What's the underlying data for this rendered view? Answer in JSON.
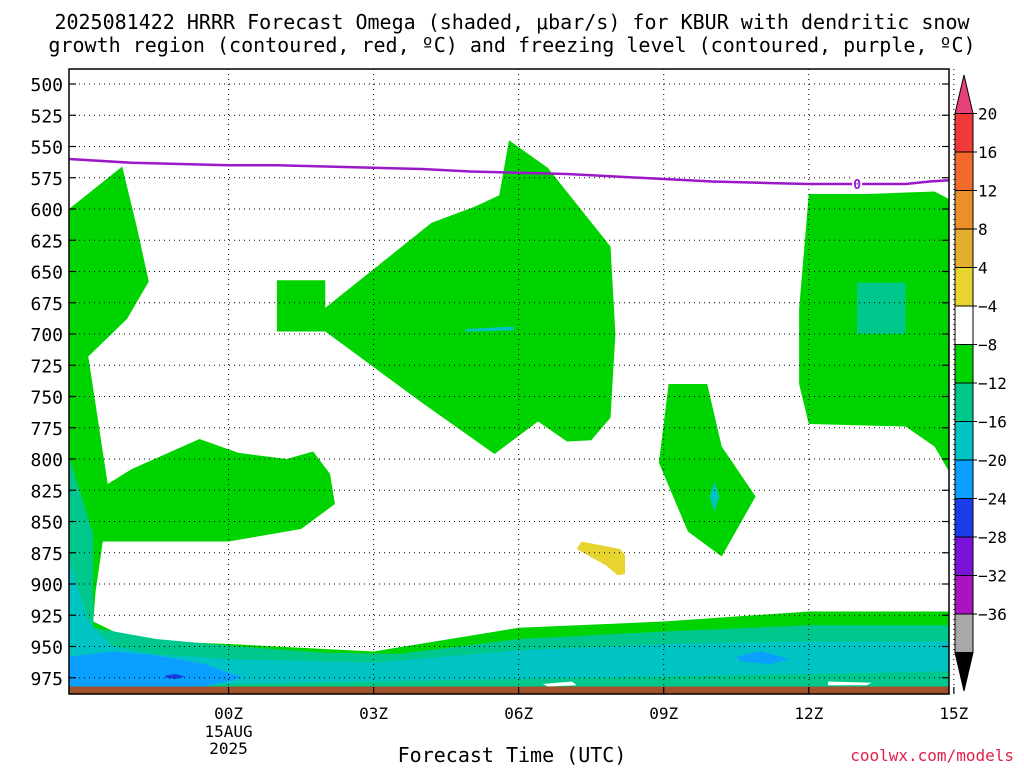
{
  "title": {
    "line1": "2025081422 HRRR Forecast Omega (shaded, μbar/s) for KBUR with dendritic snow",
    "line2": "growth region (contoured, red, ºC) and freezing level (contoured, purple, ºC)"
  },
  "credit": "coolwx.com/models",
  "chart_data": {
    "type": "contour",
    "xlabel": "Forecast Time (UTC)",
    "x_range_hours_from_00Z": [
      -3.3,
      14.9
    ],
    "x_ticks": [
      {
        "hour": 0,
        "label": "00Z",
        "sub": [
          "15AUG",
          "2025"
        ]
      },
      {
        "hour": 3,
        "label": "03Z"
      },
      {
        "hour": 6,
        "label": "06Z"
      },
      {
        "hour": 9,
        "label": "09Z"
      },
      {
        "hour": 12,
        "label": "12Z"
      },
      {
        "hour": 15,
        "label": "15Z"
      }
    ],
    "y_axis_pressure_hPa": {
      "range": [
        488,
        988
      ],
      "inverted": true,
      "ticks": [
        500,
        525,
        550,
        575,
        600,
        625,
        650,
        675,
        700,
        725,
        750,
        775,
        800,
        825,
        850,
        875,
        900,
        925,
        950,
        975
      ]
    },
    "grid": true,
    "colorbar": {
      "levels": [
        "20",
        "16",
        "12",
        "8",
        "4",
        "−4",
        "−8",
        "−12",
        "−16",
        "−20",
        "−24",
        "−28",
        "−32",
        "−36"
      ],
      "colors": [
        "#e8407a",
        "#f03a3a",
        "#f26a2c",
        "#ea8f2a",
        "#e3ad2d",
        "#e8d42e",
        "#ffffff",
        "#00d400",
        "#00c88c",
        "#00c4c4",
        "#0aa0ff",
        "#1a3de8",
        "#7a12d8",
        "#a814c0",
        "#a8a8a8",
        "#000000"
      ]
    },
    "freezing_level": {
      "label": "0",
      "color": "#9a18c8",
      "points": [
        [
          -3.3,
          560
        ],
        [
          -2,
          563
        ],
        [
          -1,
          564
        ],
        [
          0,
          565
        ],
        [
          1,
          565
        ],
        [
          2,
          566
        ],
        [
          3,
          567
        ],
        [
          4,
          568
        ],
        [
          5,
          570
        ],
        [
          6,
          571
        ],
        [
          7,
          572
        ],
        [
          8,
          574
        ],
        [
          9,
          576
        ],
        [
          10,
          578
        ],
        [
          11,
          579
        ],
        [
          12,
          580
        ],
        [
          13,
          580
        ],
        [
          14,
          580
        ],
        [
          14.5,
          578
        ],
        [
          14.9,
          577
        ]
      ]
    },
    "regions": [
      {
        "color": "#00d400",
        "points": [
          [
            -3.3,
            600
          ],
          [
            -2.2,
            566
          ],
          [
            -1.9,
            614
          ],
          [
            -1.65,
            658
          ],
          [
            -2.1,
            688
          ],
          [
            -2.9,
            718
          ],
          [
            -2.5,
            820
          ],
          [
            -2.0,
            808
          ],
          [
            -0.6,
            784
          ],
          [
            0.2,
            795
          ],
          [
            1.2,
            800
          ],
          [
            1.75,
            794
          ],
          [
            2.1,
            812
          ],
          [
            2.2,
            836
          ],
          [
            1.5,
            856
          ],
          [
            0.0,
            866
          ],
          [
            -2.6,
            866
          ],
          [
            -2.75,
            906
          ],
          [
            -2.8,
            930
          ],
          [
            -2.0,
            945
          ],
          [
            0,
            948
          ],
          [
            3,
            954
          ],
          [
            6,
            935
          ],
          [
            9,
            930
          ],
          [
            12,
            922
          ],
          [
            14.9,
            922
          ],
          [
            14.9,
            988
          ],
          [
            -3.3,
            988
          ]
        ]
      },
      {
        "color": "#00d400",
        "points": [
          [
            1.0,
            657
          ],
          [
            2.0,
            657
          ],
          [
            2.0,
            679
          ],
          [
            4.2,
            611
          ],
          [
            5.1,
            598
          ],
          [
            5.6,
            589
          ],
          [
            5.8,
            545
          ],
          [
            6.6,
            567
          ],
          [
            7.9,
            630
          ],
          [
            8.0,
            700
          ],
          [
            7.9,
            767
          ],
          [
            7.5,
            785
          ],
          [
            7.0,
            786
          ],
          [
            6.4,
            770
          ],
          [
            5.5,
            796
          ],
          [
            4.0,
            755
          ],
          [
            2.0,
            698
          ],
          [
            1.0,
            698
          ]
        ]
      },
      {
        "color": "#00d400",
        "points": [
          [
            9.1,
            740
          ],
          [
            9.9,
            740
          ],
          [
            10.2,
            790
          ],
          [
            10.9,
            830
          ],
          [
            10.2,
            878
          ],
          [
            9.5,
            858
          ],
          [
            8.9,
            803
          ]
        ]
      },
      {
        "color": "#00d400",
        "points": [
          [
            12.0,
            588
          ],
          [
            13.2,
            588
          ],
          [
            14.6,
            586
          ],
          [
            15.4,
            602
          ],
          [
            16.4,
            634
          ],
          [
            17.9,
            670
          ],
          [
            17.9,
            830
          ],
          [
            16.6,
            830
          ],
          [
            14.9,
            810
          ],
          [
            14.6,
            790
          ],
          [
            14.0,
            774
          ],
          [
            13.0,
            773
          ],
          [
            12.0,
            772
          ],
          [
            11.8,
            740
          ],
          [
            11.8,
            680
          ]
        ]
      },
      {
        "color": "#00c88c",
        "points": [
          [
            13.0,
            659
          ],
          [
            14.0,
            659
          ],
          [
            14.0,
            700
          ],
          [
            13.0,
            700
          ]
        ]
      },
      {
        "color": "#e8d42e",
        "points": [
          [
            7.3,
            866
          ],
          [
            8.1,
            872
          ],
          [
            8.2,
            877
          ],
          [
            8.2,
            892
          ],
          [
            8.05,
            893
          ],
          [
            7.8,
            885
          ],
          [
            7.2,
            872
          ]
        ]
      },
      {
        "color": "#00c88c",
        "points": [
          [
            -3.3,
            798
          ],
          [
            -2.8,
            860
          ],
          [
            -2.8,
            935
          ],
          [
            -1.5,
            944
          ],
          [
            0.2,
            950
          ],
          [
            2.0,
            955
          ],
          [
            3.5,
            956
          ],
          [
            6.0,
            944
          ],
          [
            9.0,
            938
          ],
          [
            12.0,
            933
          ],
          [
            14.9,
            933
          ],
          [
            14.9,
            988
          ],
          [
            -3.3,
            988
          ]
        ]
      },
      {
        "color": "#00c4c4",
        "points": [
          [
            -3.3,
            880
          ],
          [
            -2.9,
            930
          ],
          [
            -2.4,
            950
          ],
          [
            -1.5,
            956
          ],
          [
            0,
            960
          ],
          [
            3,
            963
          ],
          [
            6,
            953
          ],
          [
            9,
            948
          ],
          [
            12,
            946
          ],
          [
            14.9,
            946
          ],
          [
            14.9,
            970
          ],
          [
            0,
            980
          ],
          [
            -3.3,
            986
          ]
        ]
      },
      {
        "color": "#0aa0ff",
        "points": [
          [
            -3.3,
            958
          ],
          [
            -2.4,
            954
          ],
          [
            -1.5,
            957
          ],
          [
            -0.5,
            964
          ],
          [
            0.3,
            975
          ],
          [
            -0.5,
            982
          ],
          [
            -3.3,
            986
          ]
        ]
      },
      {
        "color": "#0aa0ff",
        "points": [
          [
            10.5,
            958
          ],
          [
            11.0,
            954
          ],
          [
            11.6,
            960
          ],
          [
            11.2,
            964
          ],
          [
            10.6,
            962
          ]
        ]
      },
      {
        "color": "#1a3de8",
        "points": [
          [
            -1.3,
            973
          ],
          [
            -1.1,
            972
          ],
          [
            -0.9,
            974
          ],
          [
            -1.1,
            976
          ],
          [
            -1.3,
            975
          ]
        ]
      },
      {
        "color": "#00c4c4",
        "points": [
          [
            10.05,
            818
          ],
          [
            10.15,
            830
          ],
          [
            10.05,
            842
          ],
          [
            9.95,
            830
          ]
        ]
      },
      {
        "color": "#00c4c4",
        "points": [
          [
            4.9,
            696
          ],
          [
            5.9,
            694
          ],
          [
            5.9,
            697
          ],
          [
            4.9,
            698
          ]
        ]
      },
      {
        "color": "#ffffff",
        "points": [
          [
            6.5,
            980
          ],
          [
            7.1,
            978
          ],
          [
            7.2,
            981
          ],
          [
            6.6,
            982
          ]
        ]
      },
      {
        "color": "#ffffff",
        "points": [
          [
            12.4,
            978
          ],
          [
            13.3,
            979
          ],
          [
            13.2,
            981
          ],
          [
            12.4,
            981
          ]
        ]
      },
      {
        "color": "#a0522d",
        "points": [
          [
            -3.3,
            982
          ],
          [
            14.9,
            982
          ],
          [
            14.9,
            988
          ],
          [
            -3.3,
            988
          ]
        ]
      }
    ]
  }
}
